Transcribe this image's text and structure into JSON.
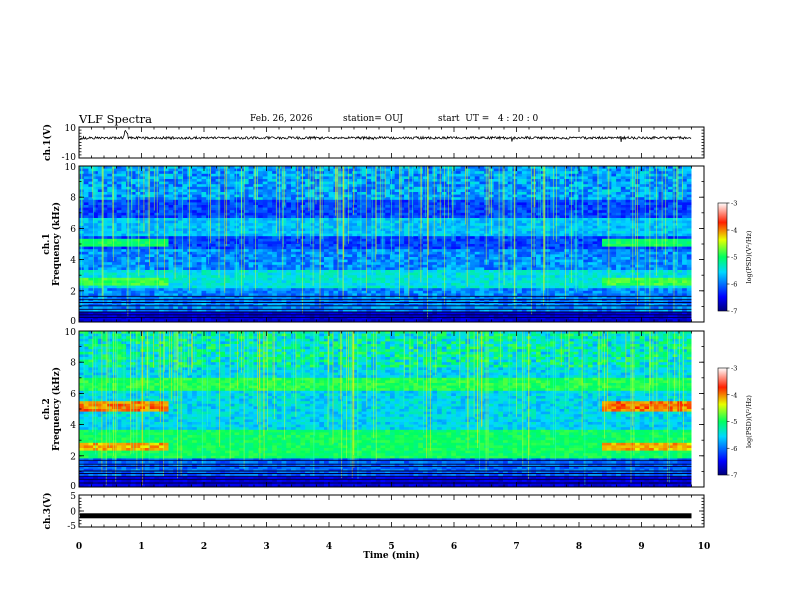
{
  "header": {
    "title": "VLF Spectra",
    "date": "Feb. 26, 2026",
    "station": "station= OUJ",
    "start_time": "start  UT =   4 : 20 : 0"
  },
  "chart_data": [
    {
      "type": "line",
      "name": "ch1-voltage",
      "ylabel": "ch.1(V)",
      "ylim": [
        -10,
        10
      ],
      "yticks": [
        "10",
        "-10"
      ],
      "description_level": "waveform centred near 3 V with spikes near 0.75 min",
      "x_range_min": [
        0,
        9.8
      ],
      "baseline_v": 3
    },
    {
      "type": "heatmap",
      "name": "ch1-spectrogram",
      "ylabel": "Frequency (kHz)",
      "channel_label": "ch.1",
      "ylim": [
        0,
        10
      ],
      "yticks": [
        "0",
        "2",
        "4",
        "6",
        "8",
        "10"
      ],
      "x_range_min": [
        0,
        9.8
      ],
      "quiet_band_kHz": [
        4.8,
        5.2
      ],
      "bright_bands_kHz": [
        [
          2.4,
          2.8
        ],
        [
          4.9,
          5.3
        ]
      ],
      "bright_band_intervals_min": [
        [
          0,
          1.45
        ],
        [
          8.35,
          9.8
        ]
      ],
      "colorbar": {
        "label": "log(PSD)(V²/Hz)",
        "range": [
          -7,
          -3
        ],
        "ticks": [
          "-3",
          "-4",
          "-5",
          "-6",
          "-7"
        ]
      }
    },
    {
      "type": "heatmap",
      "name": "ch2-spectrogram",
      "ylabel": "Frequency (kHz)",
      "channel_label": "ch.2",
      "ylim": [
        0,
        10
      ],
      "yticks": [
        "0",
        "2",
        "4",
        "6",
        "8",
        "10"
      ],
      "x_range_min": [
        0,
        9.8
      ],
      "bright_bands_kHz": [
        [
          2.4,
          2.9
        ],
        [
          4.8,
          5.4
        ]
      ],
      "bright_band_intervals_min": [
        [
          0,
          1.45
        ],
        [
          8.35,
          9.8
        ]
      ],
      "colorbar": {
        "label": "log(PSD)(V²/Hz)",
        "range": [
          -7,
          -3
        ],
        "ticks": [
          "-3",
          "-4",
          "-5",
          "-6",
          "-7"
        ]
      }
    },
    {
      "type": "line",
      "name": "ch3-voltage",
      "ylabel": "ch.3(V)",
      "ylim": [
        -5,
        5
      ],
      "yticks": [
        "5",
        "0",
        "-5"
      ],
      "x_range_min": [
        0,
        9.8
      ],
      "baseline_v": -1.5
    }
  ],
  "xaxis": {
    "label": "Time (min)",
    "range": [
      0,
      10
    ],
    "ticks": [
      "0",
      "1",
      "2",
      "3",
      "4",
      "5",
      "6",
      "7",
      "8",
      "9",
      "10"
    ]
  }
}
